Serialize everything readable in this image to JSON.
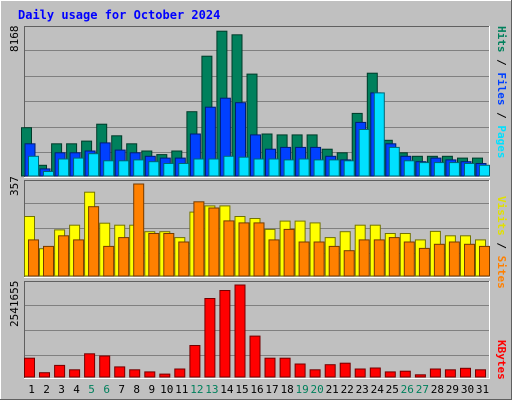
{
  "title": "Daily usage for October 2024",
  "colors": {
    "background": "#c0c0c0",
    "title_text": "#0000ff",
    "hits": "#00805c",
    "files": "#0040ff",
    "pages": "#00e0ff",
    "visits": "#ffff00",
    "sites": "#ff8000",
    "kbytes": "#ff0000",
    "weekend_day_label": "#00805c",
    "day_label": "#000000"
  },
  "chart_data": [
    {
      "type": "bar",
      "title": "Daily usage for October 2024",
      "panel": "hits-files-pages",
      "categories": [
        "1",
        "2",
        "3",
        "4",
        "5",
        "6",
        "7",
        "8",
        "9",
        "10",
        "11",
        "12",
        "13",
        "14",
        "15",
        "16",
        "17",
        "18",
        "19",
        "20",
        "21",
        "22",
        "23",
        "24",
        "25",
        "26",
        "27",
        "28",
        "29",
        "30",
        "31"
      ],
      "weekend_days": [
        "5",
        "6",
        "12",
        "13",
        "19",
        "20",
        "26",
        "27"
      ],
      "y_label_max": "8168",
      "ylim": [
        0,
        8168
      ],
      "axis_labels": {
        "pages": "Pages",
        "sep1": " / ",
        "files": "Files",
        "sep2": " / ",
        "hits": "Hits"
      },
      "series": [
        {
          "name": "Hits",
          "color": "#00805c",
          "values": [
            2700,
            600,
            1800,
            1800,
            1950,
            2900,
            2250,
            1800,
            1400,
            1200,
            1400,
            3600,
            6700,
            8100,
            7900,
            5700,
            2350,
            2300,
            2300,
            2300,
            1500,
            1300,
            3500,
            5750,
            2000,
            1300,
            1100,
            1100,
            1100,
            1000,
            1000
          ]
        },
        {
          "name": "Files",
          "color": "#0040ff",
          "values": [
            1800,
            400,
            1300,
            1300,
            1400,
            1850,
            1450,
            1300,
            1100,
            1000,
            1000,
            2350,
            3850,
            4350,
            4100,
            2300,
            1500,
            1600,
            1600,
            1600,
            1100,
            900,
            3000,
            4650,
            1800,
            1100,
            800,
            1000,
            900,
            800,
            700
          ]
        },
        {
          "name": "Pages",
          "color": "#00e0ff",
          "values": [
            1100,
            250,
            950,
            1000,
            1250,
            850,
            850,
            900,
            800,
            700,
            700,
            950,
            950,
            1100,
            1050,
            950,
            950,
            900,
            950,
            900,
            900,
            850,
            2600,
            4650,
            1600,
            850,
            750,
            750,
            750,
            700,
            600
          ]
        }
      ]
    },
    {
      "type": "bar",
      "panel": "visits-sites",
      "categories": [
        "1",
        "2",
        "3",
        "4",
        "5",
        "6",
        "7",
        "8",
        "9",
        "10",
        "11",
        "12",
        "13",
        "14",
        "15",
        "16",
        "17",
        "18",
        "19",
        "20",
        "21",
        "22",
        "23",
        "24",
        "25",
        "26",
        "27",
        "28",
        "29",
        "30",
        "31"
      ],
      "y_label_max": "357",
      "ylim": [
        0,
        357
      ],
      "axis_labels": {
        "sites": "Sites",
        "sep": " / ",
        "visits": "Visits"
      },
      "series": [
        {
          "name": "Visits",
          "color": "#ffff00",
          "values": [
            231,
            106,
            179,
            197,
            325,
            205,
            197,
            197,
            172,
            172,
            149,
            248,
            272,
            272,
            231,
            223,
            181,
            213,
            213,
            206,
            149,
            172,
            197,
            197,
            165,
            165,
            140,
            173,
            156,
            156,
            140
          ]
        },
        {
          "name": "Sites",
          "color": "#ff8000",
          "values": [
            140,
            115,
            156,
            140,
            269,
            115,
            149,
            357,
            165,
            165,
            132,
            288,
            264,
            214,
            206,
            206,
            140,
            181,
            132,
            132,
            115,
            98,
            140,
            140,
            149,
            132,
            107,
            123,
            132,
            123,
            115
          ]
        }
      ]
    },
    {
      "type": "bar",
      "panel": "kbytes",
      "categories": [
        "1",
        "2",
        "3",
        "4",
        "5",
        "6",
        "7",
        "8",
        "9",
        "10",
        "11",
        "12",
        "13",
        "14",
        "15",
        "16",
        "17",
        "18",
        "19",
        "20",
        "21",
        "22",
        "23",
        "24",
        "25",
        "26",
        "27",
        "28",
        "29",
        "30",
        "31"
      ],
      "y_label_max": "2541655",
      "ylim": [
        0,
        2541655
      ],
      "axis_labels": {
        "kbytes": "KBytes"
      },
      "series": [
        {
          "name": "KBytes",
          "color": "#ff0000",
          "values": [
            520000,
            120000,
            320000,
            200000,
            640000,
            580000,
            280000,
            200000,
            140000,
            80000,
            220000,
            870000,
            2170000,
            2390000,
            2541655,
            1130000,
            520000,
            520000,
            360000,
            200000,
            340000,
            380000,
            220000,
            250000,
            140000,
            160000,
            60000,
            220000,
            200000,
            240000,
            200000
          ]
        }
      ]
    }
  ]
}
